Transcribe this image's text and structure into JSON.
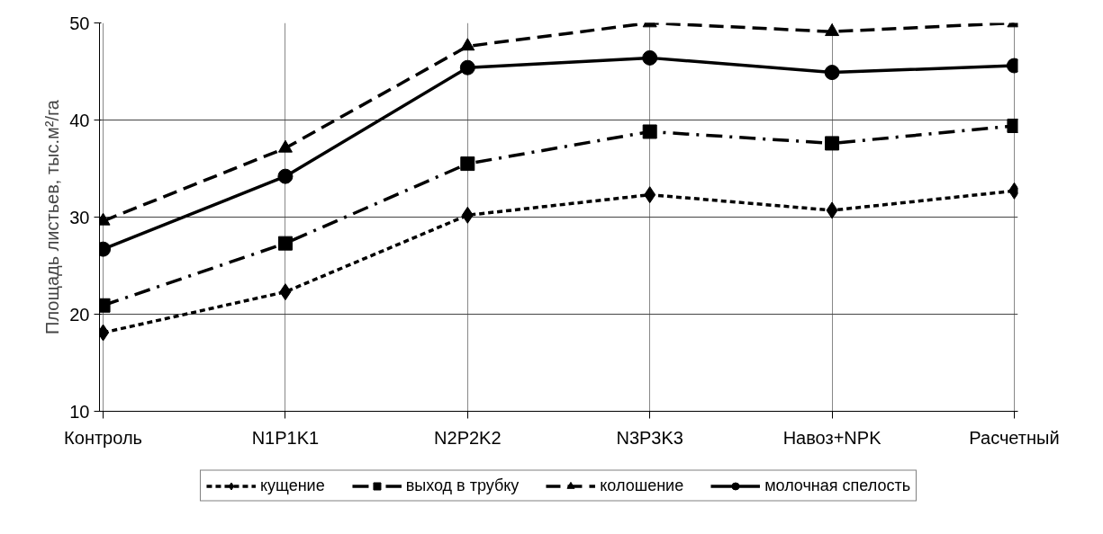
{
  "chart_data": {
    "type": "line",
    "ylabel": "Площадь листьев, тыс.м²/га",
    "categories": [
      "Контроль",
      "N1P1K1",
      "N2P2K2",
      "N3P3K3",
      "Навоз+NPK",
      "Расчетный"
    ],
    "series": [
      {
        "name": "кущение",
        "color": "#000000",
        "marker": "diamond",
        "line_style": "dotted",
        "values": [
          18.1,
          22.3,
          30.2,
          32.3,
          30.7,
          32.7
        ]
      },
      {
        "name": "выход в трубку",
        "color": "#000000",
        "marker": "square",
        "line_style": "dashdot",
        "values": [
          20.9,
          27.3,
          35.5,
          38.8,
          37.6,
          39.4
        ]
      },
      {
        "name": "колошение",
        "color": "#000000",
        "marker": "triangle",
        "line_style": "dashed",
        "values": [
          29.6,
          37.1,
          47.6,
          50.0,
          49.1,
          50.0
        ]
      },
      {
        "name": "молочная спелость",
        "color": "#000000",
        "marker": "circle",
        "line_style": "solid",
        "values": [
          26.7,
          34.2,
          45.4,
          46.4,
          44.9,
          45.6
        ]
      }
    ],
    "ylim": [
      10,
      50
    ],
    "yticks": [
      10,
      20,
      30,
      40,
      50
    ],
    "grid": true,
    "legend": "bottom"
  }
}
